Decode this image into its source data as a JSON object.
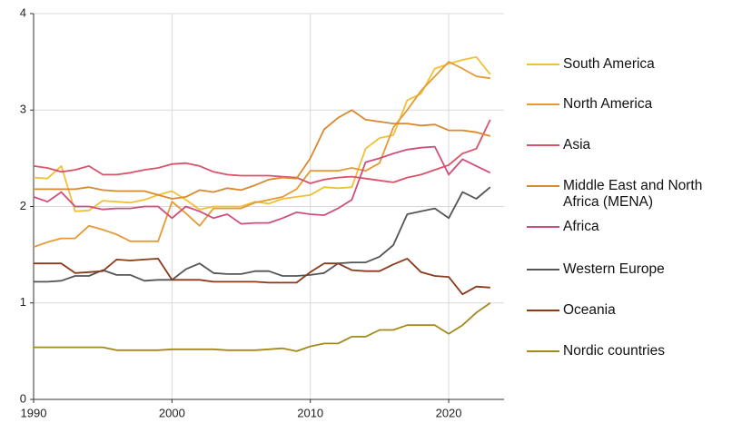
{
  "chart_data": {
    "type": "line",
    "x": [
      1990,
      1991,
      1992,
      1993,
      1994,
      1995,
      1996,
      1997,
      1998,
      1999,
      2000,
      2001,
      2002,
      2003,
      2004,
      2005,
      2006,
      2007,
      2008,
      2009,
      2010,
      2011,
      2012,
      2013,
      2014,
      2015,
      2016,
      2017,
      2018,
      2019,
      2020,
      2021,
      2022,
      2023
    ],
    "xlim": [
      1990,
      2024
    ],
    "xticks": [
      1990,
      2000,
      2010,
      2020
    ],
    "ylim": [
      0,
      4
    ],
    "yticks": [
      0,
      1,
      2,
      3,
      4
    ],
    "grid": true,
    "series": [
      {
        "name": "South America",
        "color": "#f2c037",
        "values": [
          2.3,
          2.29,
          2.42,
          1.95,
          1.96,
          2.06,
          2.05,
          2.04,
          2.07,
          2.12,
          2.16,
          2.07,
          1.97,
          2.0,
          2.0,
          2.0,
          2.05,
          2.03,
          2.08,
          2.1,
          2.12,
          2.2,
          2.19,
          2.2,
          2.6,
          2.71,
          2.74,
          3.1,
          3.17,
          3.43,
          3.48,
          3.52,
          3.55,
          3.37
        ]
      },
      {
        "name": "North America",
        "color": "#e59a35",
        "values": [
          1.58,
          1.63,
          1.67,
          1.67,
          1.8,
          1.76,
          1.71,
          1.64,
          1.64,
          1.64,
          2.05,
          1.93,
          1.8,
          1.98,
          1.98,
          1.98,
          2.04,
          2.07,
          2.1,
          2.18,
          2.37,
          2.37,
          2.37,
          2.4,
          2.37,
          2.45,
          2.82,
          3.0,
          3.2,
          3.35,
          3.5,
          3.43,
          3.35,
          3.33
        ]
      },
      {
        "name": "Asia",
        "color": "#d9536a",
        "values": [
          2.42,
          2.4,
          2.36,
          2.38,
          2.42,
          2.33,
          2.33,
          2.35,
          2.38,
          2.4,
          2.44,
          2.45,
          2.42,
          2.36,
          2.33,
          2.32,
          2.32,
          2.32,
          2.31,
          2.3,
          2.24,
          2.28,
          2.3,
          2.31,
          2.29,
          2.27,
          2.25,
          2.3,
          2.33,
          2.38,
          2.43,
          2.55,
          2.6,
          2.9
        ]
      },
      {
        "name": "Middle East and North Africa (MENA)",
        "color": "#d98a2e",
        "values": [
          2.18,
          2.18,
          2.18,
          2.18,
          2.2,
          2.17,
          2.16,
          2.16,
          2.16,
          2.12,
          2.08,
          2.1,
          2.17,
          2.15,
          2.19,
          2.17,
          2.22,
          2.28,
          2.3,
          2.29,
          2.5,
          2.8,
          2.92,
          3.0,
          2.9,
          2.88,
          2.86,
          2.86,
          2.84,
          2.85,
          2.79,
          2.79,
          2.77,
          2.73
        ]
      },
      {
        "name": "Africa",
        "color": "#cf4f7a",
        "values": [
          2.1,
          2.05,
          2.15,
          2.0,
          2.0,
          1.97,
          1.98,
          1.98,
          2.0,
          2.0,
          1.88,
          2.0,
          1.95,
          1.88,
          1.92,
          1.82,
          1.83,
          1.83,
          1.88,
          1.94,
          1.92,
          1.91,
          1.98,
          2.07,
          2.46,
          2.5,
          2.55,
          2.59,
          2.61,
          2.62,
          2.33,
          2.49,
          2.42,
          2.35
        ]
      },
      {
        "name": "Western Europe",
        "color": "#555555",
        "values": [
          1.22,
          1.22,
          1.23,
          1.28,
          1.28,
          1.34,
          1.29,
          1.29,
          1.23,
          1.24,
          1.24,
          1.35,
          1.41,
          1.31,
          1.3,
          1.3,
          1.33,
          1.33,
          1.28,
          1.28,
          1.29,
          1.31,
          1.41,
          1.42,
          1.42,
          1.48,
          1.6,
          1.92,
          1.95,
          1.98,
          1.88,
          2.15,
          2.08,
          2.2
        ]
      },
      {
        "name": "Oceania",
        "color": "#8b3a1a",
        "values": [
          1.41,
          1.41,
          1.41,
          1.31,
          1.32,
          1.33,
          1.45,
          1.44,
          1.45,
          1.46,
          1.24,
          1.24,
          1.24,
          1.22,
          1.22,
          1.22,
          1.22,
          1.21,
          1.21,
          1.21,
          1.32,
          1.41,
          1.41,
          1.34,
          1.33,
          1.33,
          1.4,
          1.46,
          1.32,
          1.28,
          1.27,
          1.09,
          1.17,
          1.16
        ]
      },
      {
        "name": "Nordic countries",
        "color": "#a48a1e",
        "values": [
          0.54,
          0.54,
          0.54,
          0.54,
          0.54,
          0.54,
          0.51,
          0.51,
          0.51,
          0.51,
          0.52,
          0.52,
          0.52,
          0.52,
          0.51,
          0.51,
          0.51,
          0.52,
          0.53,
          0.5,
          0.55,
          0.58,
          0.58,
          0.65,
          0.65,
          0.72,
          0.72,
          0.77,
          0.77,
          0.77,
          0.68,
          0.77,
          0.9,
          1.0
        ]
      }
    ]
  }
}
